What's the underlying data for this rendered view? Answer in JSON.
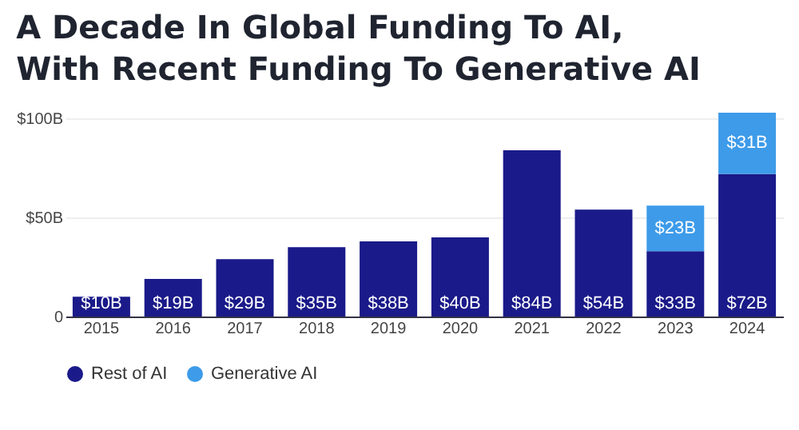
{
  "chart_data": {
    "type": "bar",
    "stacked": true,
    "title": "A Decade In Global Funding To AI, With Recent Funding To Generative AI",
    "categories": [
      "2015",
      "2016",
      "2017",
      "2018",
      "2019",
      "2020",
      "2021",
      "2022",
      "2023",
      "2024"
    ],
    "series": [
      {
        "name": "Rest of AI",
        "color": "#1a1a8a",
        "values": [
          10,
          19,
          29,
          35,
          38,
          40,
          84,
          54,
          33,
          72
        ],
        "value_labels": [
          "$10B",
          "$19B",
          "$29B",
          "$35B",
          "$38B",
          "$40B",
          "$84B",
          "$54B",
          "$33B",
          "$72B"
        ]
      },
      {
        "name": "Generative AI",
        "color": "#3d9be9",
        "values": [
          null,
          null,
          null,
          null,
          null,
          null,
          null,
          null,
          23,
          31
        ],
        "value_labels": [
          null,
          null,
          null,
          null,
          null,
          null,
          null,
          null,
          "$23B",
          "$31B"
        ]
      }
    ],
    "ylim": [
      0,
      105
    ],
    "yticks": [
      0,
      {
        "value": 50,
        "label": "$50B"
      },
      {
        "value": 100,
        "label": "$100B"
      }
    ],
    "grid": "y",
    "legend": "bottom"
  }
}
